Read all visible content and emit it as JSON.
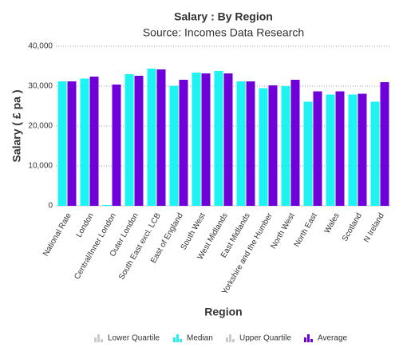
{
  "chart_data": {
    "type": "bar",
    "title": "Salary : By Region",
    "subtitle": "Source: Incomes Data Research",
    "x_label": "Region",
    "y_label": "Salary ( £ pa )",
    "categories": [
      "National Rate",
      "London",
      "Central/Inner London",
      "Outer London",
      "South East excl. LCB",
      "East of England",
      "South West",
      "West Midlands",
      "East Midlands",
      "Yorkshire and the Humber",
      "North West",
      "North East",
      "Wales",
      "Scotland",
      "N Ireland"
    ],
    "series": [
      {
        "name": "Lower Quartile",
        "color": "#cccccc",
        "visible": false,
        "values": [
          null,
          null,
          null,
          null,
          null,
          null,
          null,
          null,
          null,
          null,
          null,
          null,
          null,
          null,
          null
        ]
      },
      {
        "name": "Median",
        "color": "#1ef3f3",
        "visible": true,
        "values": [
          31200,
          31900,
          200,
          33000,
          34400,
          30100,
          33400,
          33800,
          31200,
          29500,
          30000,
          26100,
          27900,
          27900,
          26100
        ]
      },
      {
        "name": "Upper Quartile",
        "color": "#cccccc",
        "visible": false,
        "values": [
          null,
          null,
          null,
          null,
          null,
          null,
          null,
          null,
          null,
          null,
          null,
          null,
          null,
          null,
          null
        ]
      },
      {
        "name": "Average",
        "color": "#7000da",
        "visible": true,
        "values": [
          31200,
          32400,
          30400,
          32600,
          34200,
          31600,
          33200,
          33200,
          31200,
          30200,
          31600,
          28700,
          28700,
          28100,
          31000
        ]
      }
    ],
    "ylim": [
      0,
      40000
    ],
    "yticks": [
      0,
      {
        "value": 10000,
        "label": "10,000"
      },
      {
        "value": 20000,
        "label": "20,000"
      },
      {
        "value": 30000,
        "label": "30,000"
      },
      {
        "value": 40000,
        "label": "40,000"
      }
    ],
    "grid": true,
    "legend": "bottom"
  }
}
